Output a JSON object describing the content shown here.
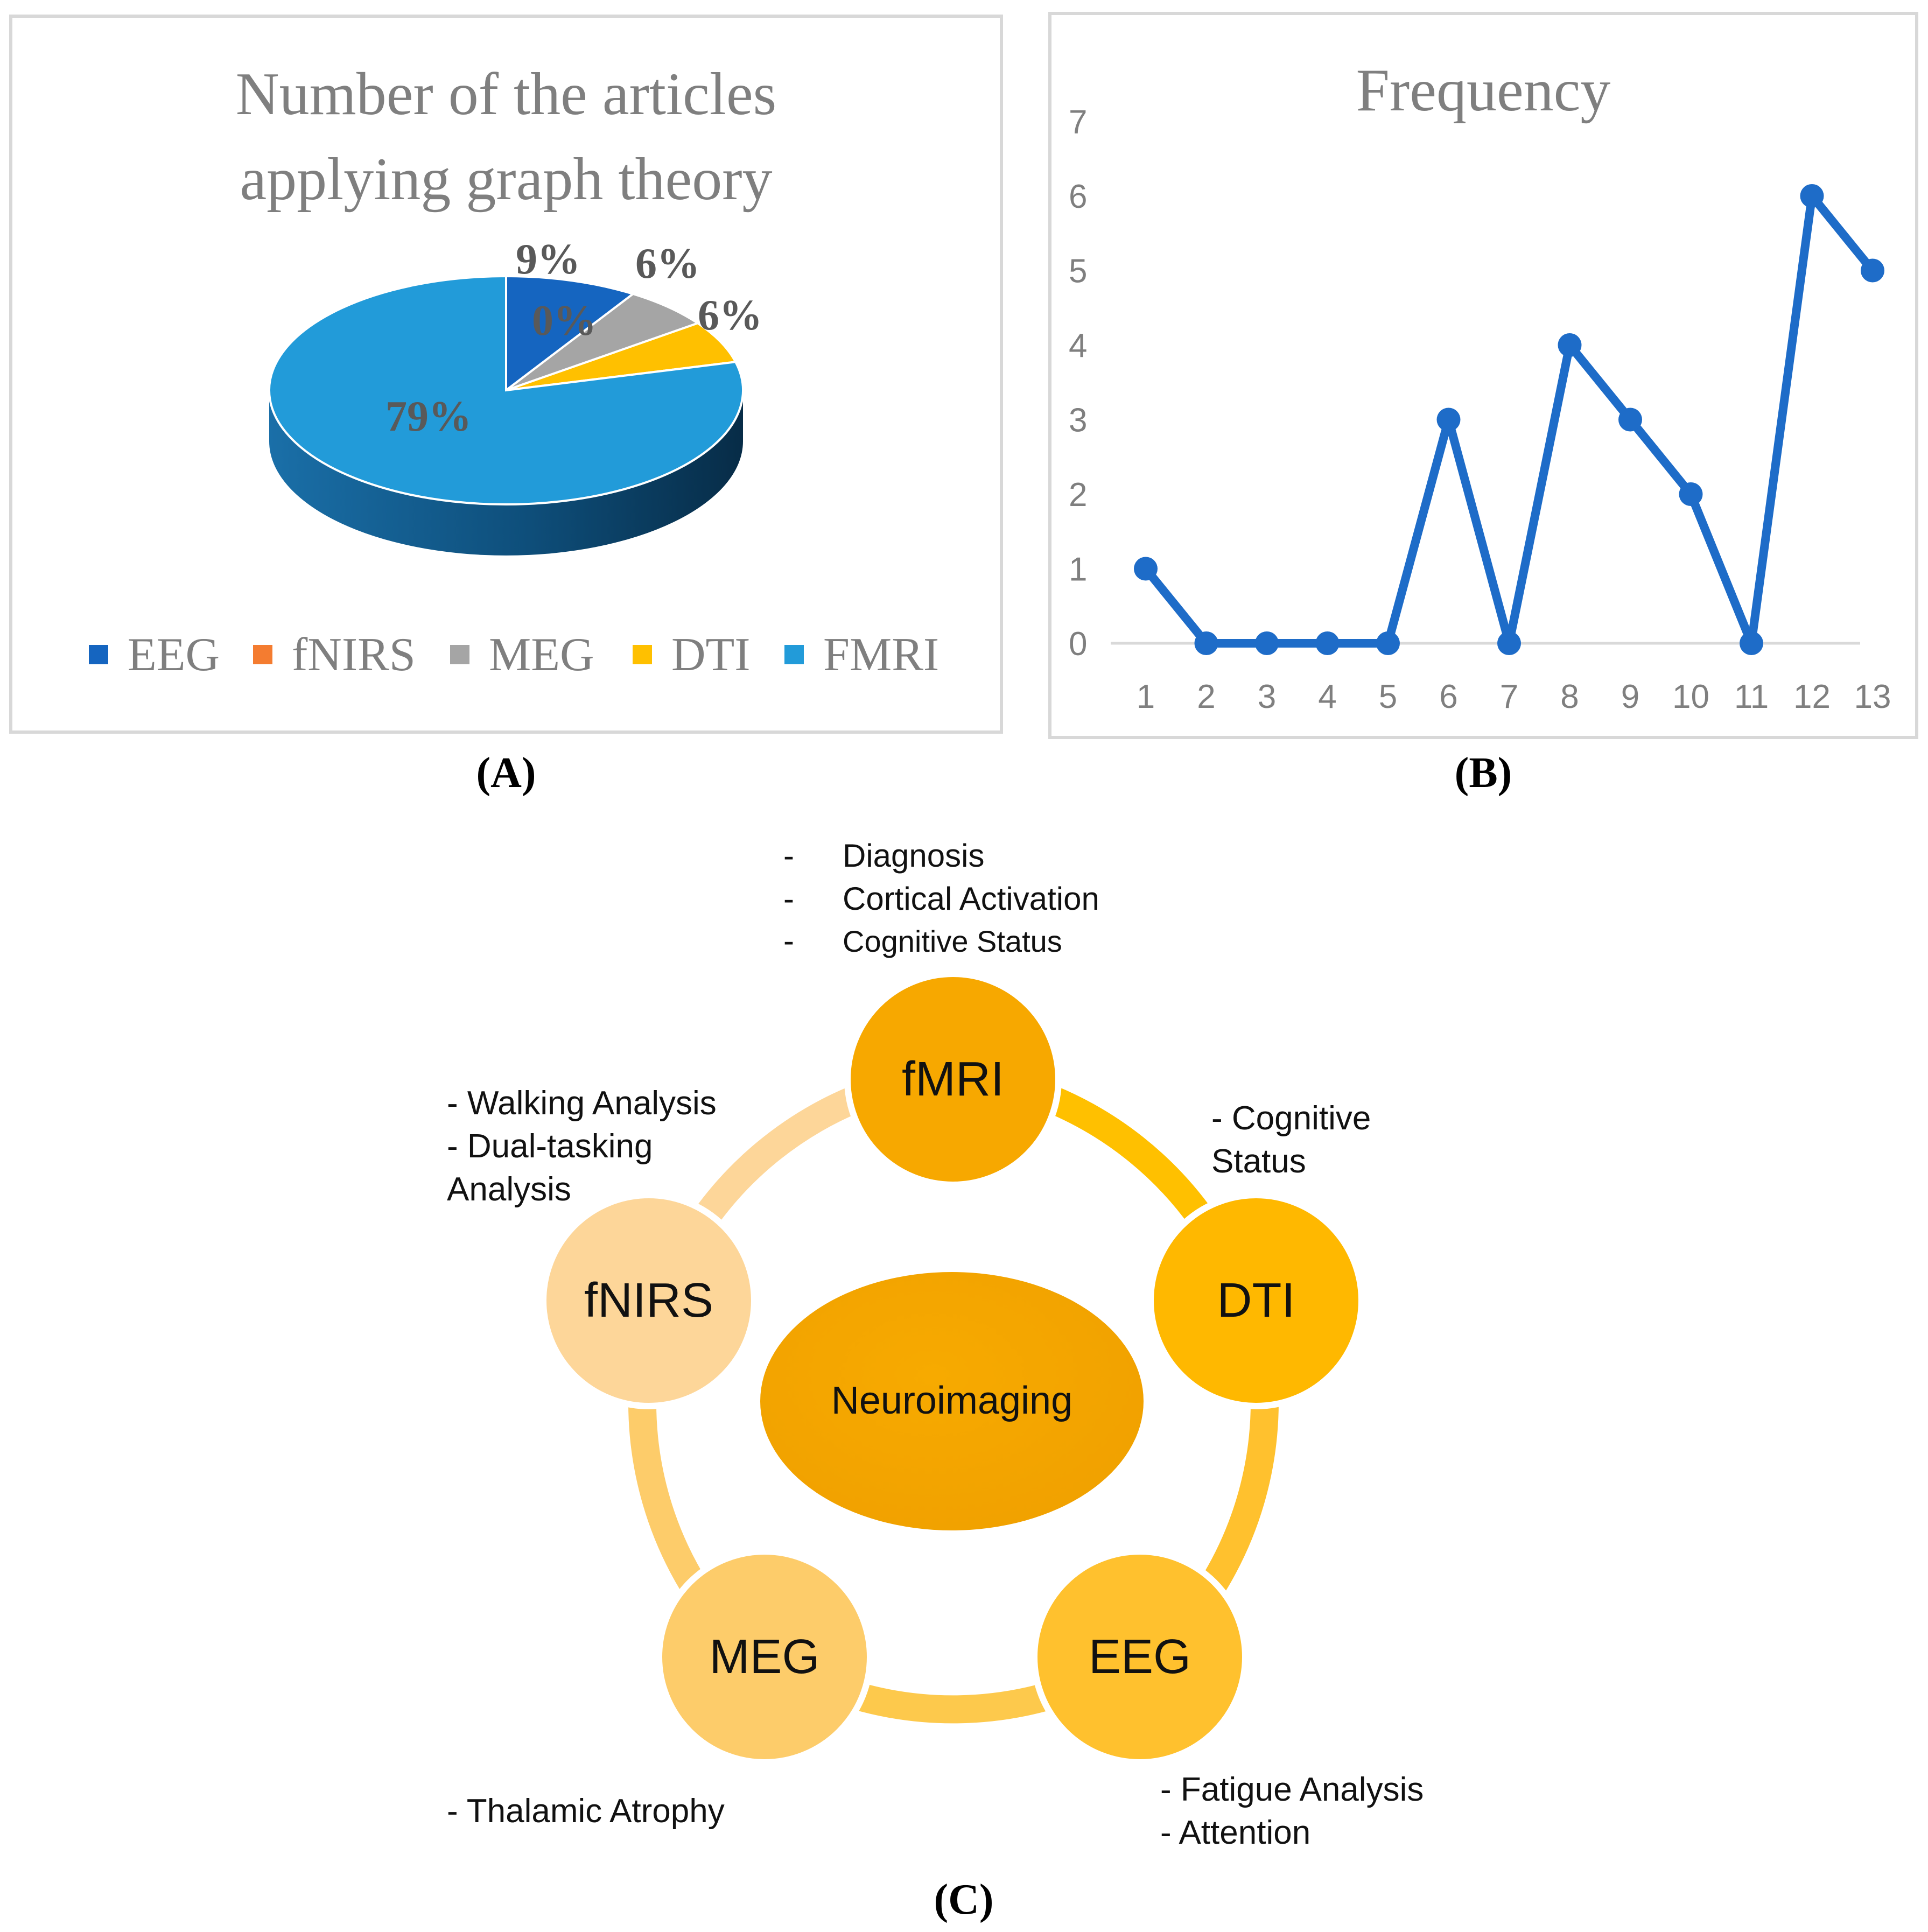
{
  "panels": {
    "a_label": "(A)",
    "b_label": "(B)",
    "c_label": "(C)"
  },
  "chart_data": [
    {
      "type": "pie",
      "title_line1": "Number of the articles",
      "title_line2": "applying graph theory",
      "slices": [
        {
          "name": "EEG",
          "value": 9,
          "label": "9%",
          "color": "#1565c0"
        },
        {
          "name": "fNIRS",
          "value": 0,
          "label": "0%",
          "color": "#f47c30"
        },
        {
          "name": "MEG",
          "value": 6,
          "label": "6%",
          "color": "#a5a5a5"
        },
        {
          "name": "DTI",
          "value": 6,
          "label": "6%",
          "color": "#ffc000"
        },
        {
          "name": "FMRI",
          "value": 79,
          "label": "79%",
          "color": "#229bd9"
        }
      ],
      "legend_position": "bottom"
    },
    {
      "type": "line",
      "title": "Frequency",
      "x": [
        "1",
        "2",
        "3",
        "4",
        "5",
        "6",
        "7",
        "8",
        "9",
        "10",
        "11",
        "12",
        "13"
      ],
      "series": [
        {
          "values": [
            1,
            0,
            0,
            0,
            0,
            3,
            0,
            4,
            3,
            2,
            0,
            6,
            5
          ],
          "color": "#1e6cc8"
        }
      ],
      "ylim": [
        0,
        7
      ],
      "yticks": [
        "0",
        "1",
        "2",
        "3",
        "4",
        "5",
        "6",
        "7"
      ],
      "grid": false
    }
  ],
  "diagram": {
    "center": "Neuroimaging",
    "nodes": {
      "fmri": {
        "label": "fMRI",
        "color": "#f7a800",
        "notes": [
          "Diagnosis",
          "Cortical Activation",
          "Cognitive Status"
        ]
      },
      "dti": {
        "label": "DTI",
        "color": "#ffb800",
        "notes": [
          "- Cognitive",
          "Status"
        ]
      },
      "eeg": {
        "label": "EEG",
        "color": "#ffc12e",
        "notes": [
          "- Fatigue Analysis",
          "- Attention"
        ]
      },
      "meg": {
        "label": "MEG",
        "color": "#fdcc6a",
        "notes": [
          "- Thalamic Atrophy"
        ]
      },
      "fnirs": {
        "label": "fNIRS",
        "color": "#fdd699",
        "notes": [
          "- Walking Analysis",
          "- Dual-tasking",
          "Analysis"
        ]
      }
    },
    "bullet": "-"
  }
}
